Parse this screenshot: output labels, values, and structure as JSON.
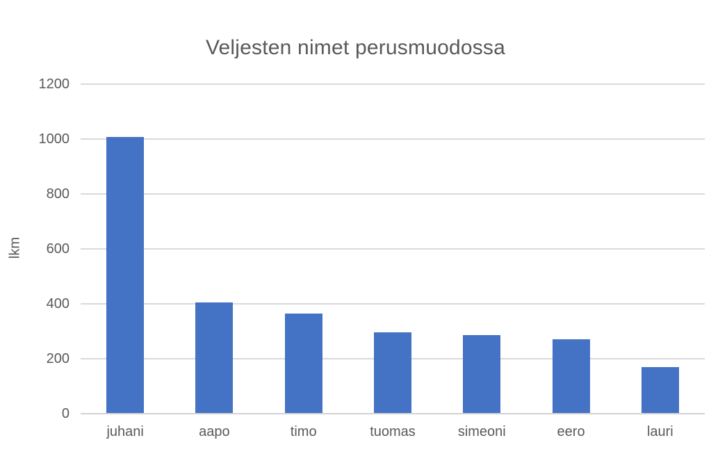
{
  "chart_data": {
    "type": "bar",
    "title": "Veljesten nimet perusmuodossa",
    "xlabel": "",
    "ylabel": "lkm",
    "categories": [
      "juhani",
      "aapo",
      "timo",
      "tuomas",
      "simeoni",
      "eero",
      "lauri"
    ],
    "values": [
      1008,
      405,
      365,
      297,
      286,
      270,
      170
    ],
    "ylim": [
      0,
      1200
    ],
    "yticks": [
      0,
      200,
      400,
      600,
      800,
      1000,
      1200
    ],
    "grid": true,
    "legend": false,
    "colors": {
      "bar": "#4472C4",
      "text": "#595959",
      "gridline": "#D9D9D9",
      "axis_line": "#D2D2D2",
      "background": "#FFFFFF"
    }
  }
}
